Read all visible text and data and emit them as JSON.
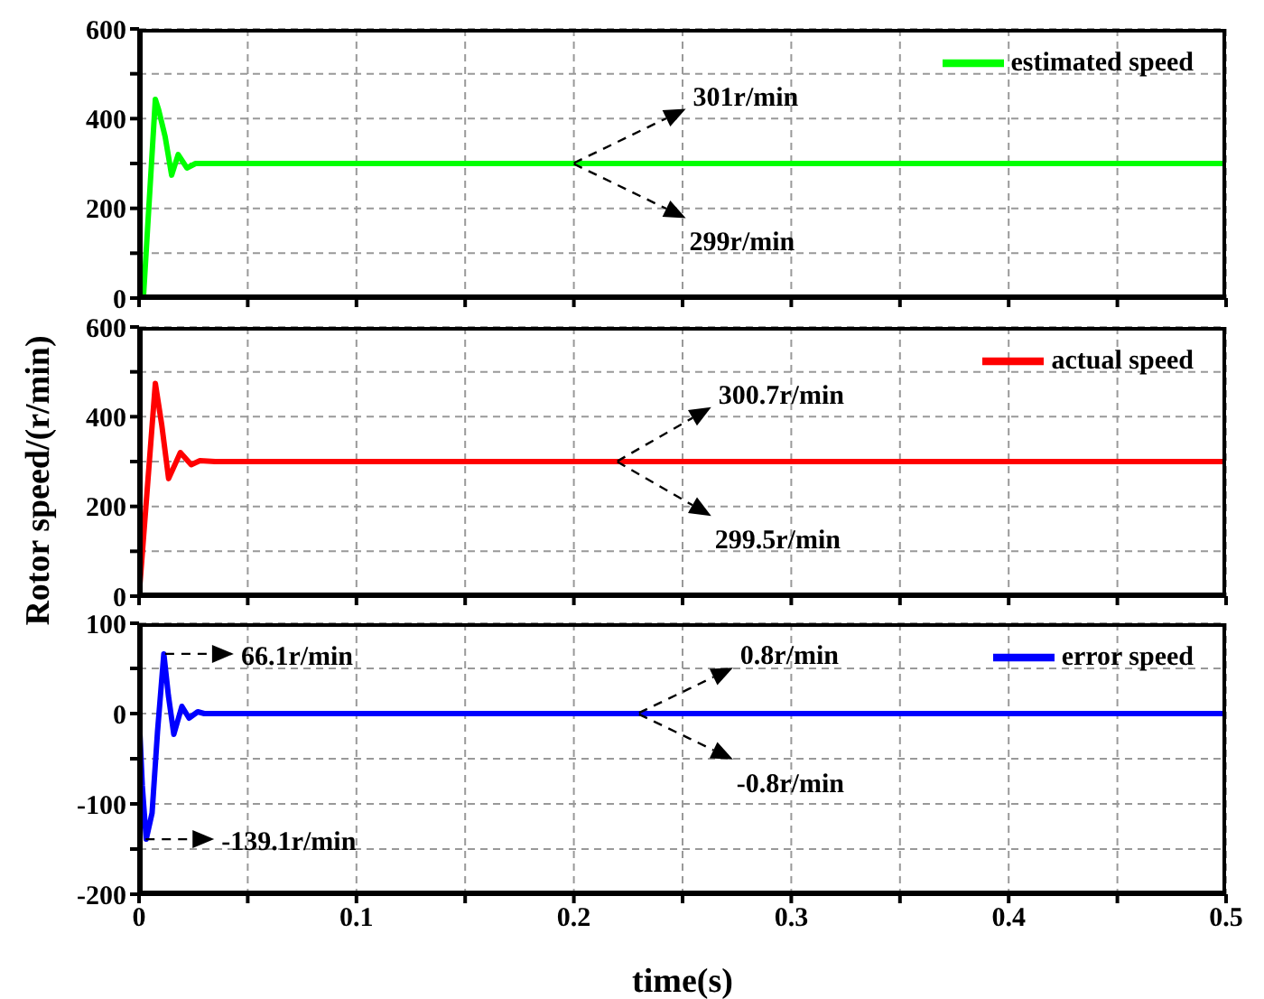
{
  "chart_data": [
    {
      "type": "line",
      "xlim": [
        0,
        0.5
      ],
      "xticks": [
        0,
        {
          "value": 0.05,
          "label": null
        },
        0.1,
        {
          "value": 0.15,
          "label": null
        },
        0.2,
        {
          "value": 0.25,
          "label": null
        },
        0.3,
        {
          "value": 0.35,
          "label": null
        },
        0.4,
        {
          "value": 0.45,
          "label": null
        },
        0.5
      ],
      "ylim": [
        0,
        600
      ],
      "yticks": [
        0,
        {
          "value": 100,
          "label": null
        },
        200,
        {
          "value": 300,
          "label": null
        },
        400,
        {
          "value": 500,
          "label": null
        },
        600
      ],
      "tick_labels": "y",
      "grid": true,
      "legend": "top right",
      "marker": "none",
      "line_style": "solid",
      "series": [
        {
          "name": "estimated speed",
          "color": "#00ff00",
          "x": [
            0,
            0.002,
            0.0075,
            0.009,
            0.012,
            0.015,
            0.018,
            0.022,
            0.026,
            0.03,
            0.5
          ],
          "values": [
            0,
            0,
            443,
            420,
            360,
            274,
            320,
            290,
            300,
            300,
            300
          ]
        }
      ],
      "annotations": [
        {
          "text": "301r/min",
          "x": 0.2,
          "y": 301
        },
        {
          "text": "299r/min",
          "x": 0.2,
          "y": 299
        }
      ]
    },
    {
      "type": "line",
      "xlim": [
        0,
        0.5
      ],
      "xticks": [
        0,
        {
          "value": 0.05,
          "label": null
        },
        0.1,
        {
          "value": 0.15,
          "label": null
        },
        0.2,
        {
          "value": 0.25,
          "label": null
        },
        0.3,
        {
          "value": 0.35,
          "label": null
        },
        0.4,
        {
          "value": 0.45,
          "label": null
        },
        0.5
      ],
      "ylim": [
        0,
        600
      ],
      "yticks": [
        0,
        {
          "value": 100,
          "label": null
        },
        200,
        {
          "value": 300,
          "label": null
        },
        400,
        {
          "value": 500,
          "label": null
        },
        600
      ],
      "tick_labels": "y",
      "grid": true,
      "legend": "top right",
      "marker": "none",
      "line_style": "solid",
      "ylabel": "Rotor speed/(r/min)",
      "series": [
        {
          "name": "actual speed",
          "color": "#ff0000",
          "x": [
            0,
            0.0075,
            0.0105,
            0.0136,
            0.019,
            0.024,
            0.028,
            0.035,
            0.5
          ],
          "values": [
            0,
            474,
            380,
            262,
            320,
            293,
            302,
            300,
            300
          ]
        }
      ],
      "annotations": [
        {
          "text": "300.7r/min",
          "x": 0.22,
          "y": 300.7
        },
        {
          "text": "299.5r/min",
          "x": 0.22,
          "y": 299.5
        }
      ]
    },
    {
      "type": "line",
      "xlim": [
        0,
        0.5
      ],
      "xticks": [
        0,
        {
          "value": 0.05,
          "label": null
        },
        0.1,
        {
          "value": 0.15,
          "label": null
        },
        0.2,
        {
          "value": 0.25,
          "label": null
        },
        0.3,
        {
          "value": 0.35,
          "label": null
        },
        0.4,
        {
          "value": 0.45,
          "label": null
        },
        0.5
      ],
      "ylim": [
        -200,
        100
      ],
      "yticks": [
        -200,
        {
          "value": -150,
          "label": null
        },
        -100,
        {
          "value": -50,
          "label": null
        },
        0,
        {
          "value": 50,
          "label": null
        },
        100
      ],
      "grid": true,
      "legend": "top right",
      "marker": "none",
      "line_style": "solid",
      "xlabel": "time(s)",
      "series": [
        {
          "name": "error speed",
          "color": "#0000ff",
          "x": [
            0,
            0.0015,
            0.0033,
            0.006,
            0.0085,
            0.0114,
            0.0135,
            0.016,
            0.0197,
            0.023,
            0.027,
            0.03,
            0.5
          ],
          "values": [
            0,
            -80,
            -139.1,
            -110,
            -20,
            66.1,
            20,
            -23,
            8,
            -5,
            2,
            0,
            0
          ]
        }
      ],
      "annotations": [
        {
          "text": "0.8r/min",
          "x": 0.23,
          "y": 0.8
        },
        {
          "text": "-0.8r/min",
          "x": 0.23,
          "y": -0.8
        },
        {
          "text": "66.1r/min",
          "x": 0.012,
          "y": 66.1
        },
        {
          "text": "-139.1r/min",
          "x": 0.003,
          "y": -139.1
        }
      ]
    }
  ]
}
